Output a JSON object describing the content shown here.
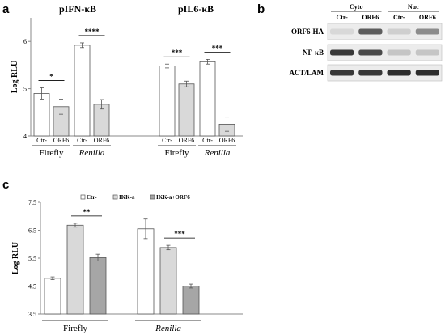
{
  "panels": {
    "a": {
      "letter": "a"
    },
    "b": {
      "letter": "b"
    },
    "c": {
      "letter": "c"
    }
  },
  "chart_data": [
    {
      "type": "bar",
      "panel": "a",
      "ylabel": "Log RLU",
      "ylim": [
        4,
        6.5
      ],
      "yticks": [
        "4",
        "5",
        "6"
      ],
      "subtitles": [
        "pIFN-κB",
        "pIL6-κB"
      ],
      "groups": [
        {
          "subtitle": "pIFN-κB",
          "name": "Firefly",
          "italic": false,
          "bars": [
            {
              "label": "Ctr-",
              "value": 4.9,
              "err": 0.12,
              "fill": "#ffffff"
            },
            {
              "label": "ORF6",
              "value": 4.62,
              "err": 0.16,
              "fill": "#d9d9d9"
            }
          ],
          "sig": "*"
        },
        {
          "subtitle": "pIFN-κB",
          "name": "Renilla",
          "italic": true,
          "bars": [
            {
              "label": "Ctr-",
              "value": 5.92,
              "err": 0.05,
              "fill": "#ffffff"
            },
            {
              "label": "ORF6",
              "value": 4.67,
              "err": 0.1,
              "fill": "#d9d9d9"
            }
          ],
          "sig": "****"
        },
        {
          "subtitle": "pIL6-κB",
          "name": "Firefly",
          "italic": false,
          "bars": [
            {
              "label": "Ctr-",
              "value": 5.48,
              "err": 0.04,
              "fill": "#ffffff"
            },
            {
              "label": "ORF6",
              "value": 5.1,
              "err": 0.06,
              "fill": "#d9d9d9"
            }
          ],
          "sig": "***"
        },
        {
          "subtitle": "pIL6-κB",
          "name": "Renilla",
          "italic": true,
          "bars": [
            {
              "label": "Ctr-",
              "value": 5.57,
              "err": 0.05,
              "fill": "#ffffff"
            },
            {
              "label": "ORF6",
              "value": 4.25,
              "err": 0.15,
              "fill": "#d9d9d9"
            }
          ],
          "sig": "***"
        }
      ]
    },
    {
      "type": "bar",
      "panel": "c",
      "ylabel": "Log RLU",
      "ylim": [
        3.5,
        7.5
      ],
      "yticks": [
        "3.5",
        "4.5",
        "5.5",
        "6.5",
        "7.5"
      ],
      "legend": [
        {
          "name": "Ctr-",
          "fill": "#ffffff"
        },
        {
          "name": "IKK-a",
          "fill": "#d9d9d9"
        },
        {
          "name": "IKK-a+ORF6",
          "fill": "#a6a6a6"
        }
      ],
      "categories": [
        {
          "name": "Firefly",
          "italic": false
        },
        {
          "name": "Renilla",
          "italic": true
        }
      ],
      "series": [
        {
          "name": "Ctr-",
          "values": [
            4.78,
            6.55
          ],
          "err": [
            0.05,
            0.35
          ]
        },
        {
          "name": "IKK-a",
          "values": [
            6.68,
            5.88
          ],
          "err": [
            0.07,
            0.08
          ]
        },
        {
          "name": "IKK-a+ORF6",
          "values": [
            5.52,
            4.5
          ],
          "err": [
            0.12,
            0.07
          ]
        }
      ],
      "sig": [
        {
          "category": "Firefly",
          "text": "**"
        },
        {
          "category": "Renilla",
          "text": "***"
        }
      ]
    }
  ],
  "western_blot": {
    "compartments": [
      "Cyto",
      "Nuc"
    ],
    "lanes": [
      "Ctr-",
      "ORF6",
      "Ctr-",
      "ORF6"
    ],
    "rows": [
      {
        "label": "ORF6-HA",
        "bands": [
          0.1,
          0.75,
          0.15,
          0.5
        ]
      },
      {
        "label": "NF-κB",
        "bands": [
          0.95,
          0.85,
          0.2,
          0.2
        ]
      },
      {
        "label": "ACT/LAM",
        "bands": [
          0.95,
          0.95,
          1.0,
          1.0
        ]
      }
    ]
  }
}
